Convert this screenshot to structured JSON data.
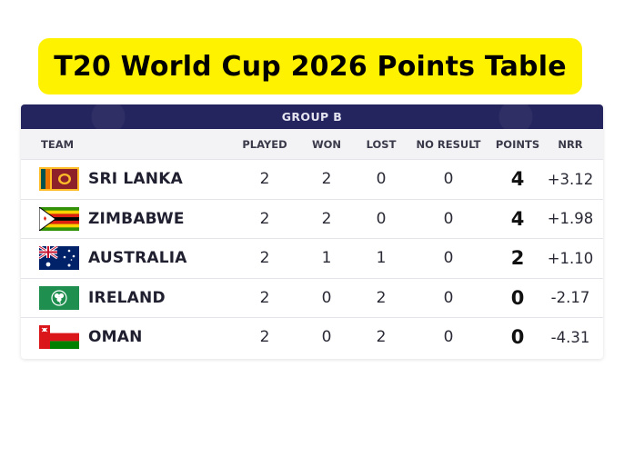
{
  "title": "T20 World Cup 2026 Points Table",
  "group": "GROUP B",
  "columns": {
    "team": "TEAM",
    "played": "PLAYED",
    "won": "WON",
    "lost": "LOST",
    "no_result": "NO RESULT",
    "points": "POINTS",
    "nrr": "NRR"
  },
  "rows": [
    {
      "flag": "sri-lanka-flag-icon",
      "team": "SRI LANKA",
      "played": "2",
      "won": "2",
      "lost": "0",
      "no_result": "0",
      "points": "4",
      "nrr": "+3.12"
    },
    {
      "flag": "zimbabwe-flag-icon",
      "team": "ZIMBABWE",
      "played": "2",
      "won": "2",
      "lost": "0",
      "no_result": "0",
      "points": "4",
      "nrr": "+1.98"
    },
    {
      "flag": "australia-flag-icon",
      "team": "AUSTRALIA",
      "played": "2",
      "won": "1",
      "lost": "1",
      "no_result": "0",
      "points": "2",
      "nrr": "+1.10"
    },
    {
      "flag": "ireland-flag-icon",
      "team": "IRELAND",
      "played": "2",
      "won": "0",
      "lost": "2",
      "no_result": "0",
      "points": "0",
      "nrr": "-2.17"
    },
    {
      "flag": "oman-flag-icon",
      "team": "OMAN",
      "played": "2",
      "won": "0",
      "lost": "2",
      "no_result": "0",
      "points": "0",
      "nrr": "-4.31"
    }
  ],
  "colors": {
    "banner": "#fff200",
    "group_header": "#24245e",
    "column_header": "#f3f3f6"
  }
}
